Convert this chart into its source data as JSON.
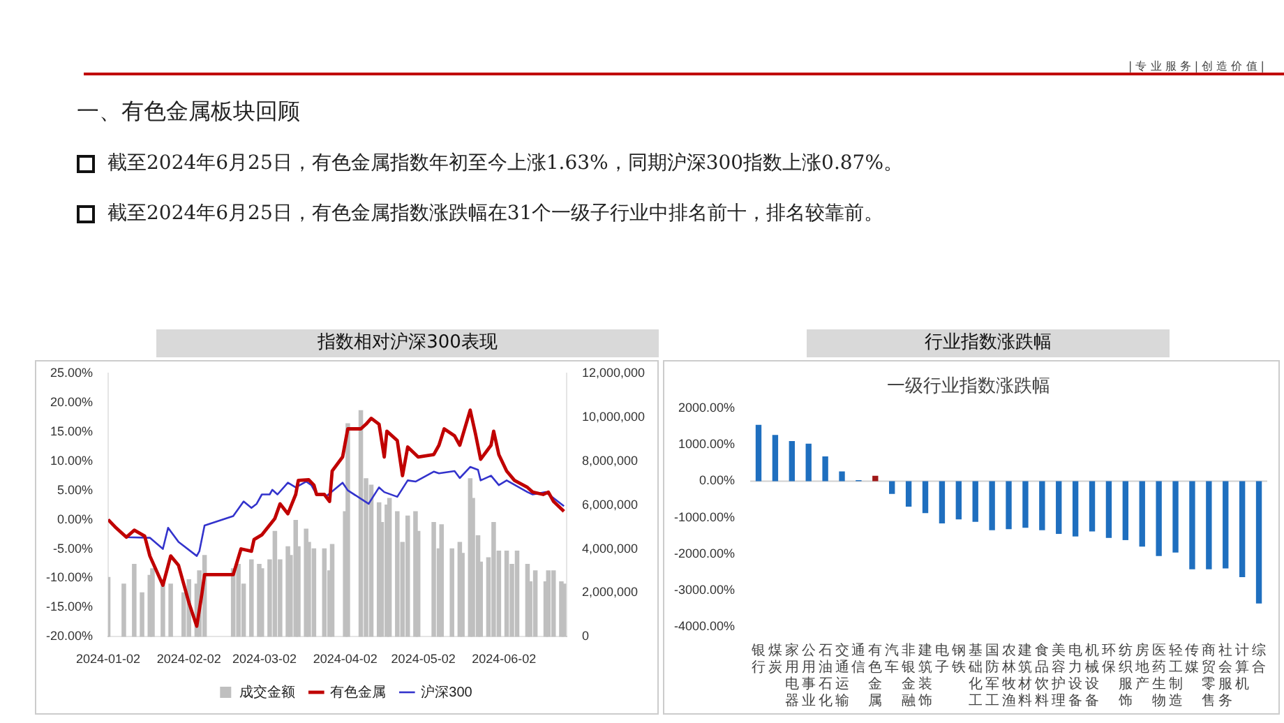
{
  "chart_data": [
    {
      "type": "other",
      "title": "一、有色金属板块回顾",
      "annotations": [
        "| 专 业 服 务 | 创 造 价 值 |",
        "截至2024年6月25日，有色金属指数年初至今上涨1.63%，同期沪深300指数上涨0.87%。",
        "截至2024年6月25日，有色金属指数涨跌幅在31个一级子行业中排名前十，排名较靠前。"
      ]
    },
    {
      "type": "line",
      "title": "指数相对沪深300表现",
      "xlim": [
        "2024-01-02",
        "2024-06-26"
      ],
      "xticks": [
        "2024-01-02",
        "2024-02-02",
        "2024-03-02",
        "2024-04-02",
        "2024-05-02",
        "2024-06-02"
      ],
      "ylim": [
        -20,
        25
      ],
      "yticks": [
        {
          "value": -20,
          "label": "-20.00%"
        },
        {
          "value": -15,
          "label": "-15.00%"
        },
        {
          "value": -10,
          "label": "-10.00%"
        },
        {
          "value": -5,
          "label": "-5.00%"
        },
        {
          "value": 0,
          "label": "0.00%"
        },
        {
          "value": 5,
          "label": "5.00%"
        },
        {
          "value": 10,
          "label": "10.00%"
        },
        {
          "value": 15,
          "label": "15.00%"
        },
        {
          "value": 20,
          "label": "20.00%"
        },
        {
          "value": 25,
          "label": "25.00%"
        }
      ],
      "y2lim": [
        0,
        12000000
      ],
      "y2ticks": [
        {
          "value": 0,
          "label": "0"
        },
        {
          "value": 2000000,
          "label": "2,000,000"
        },
        {
          "value": 4000000,
          "label": "4,000,000"
        },
        {
          "value": 6000000,
          "label": "6,000,000"
        },
        {
          "value": 8000000,
          "label": "8,000,000"
        },
        {
          "value": 10000000,
          "label": "10,000,000"
        },
        {
          "value": 12000000,
          "label": "12,000,000"
        }
      ],
      "grid": false,
      "legend": "bottom",
      "marker": "none",
      "series": [
        {
          "name": "成交金额",
          "type": "bar",
          "axis": "y2",
          "color": "#bfbfbf",
          "x": [
            "2024-01-02",
            "2024-01-08",
            "2024-01-12",
            "2024-01-15",
            "2024-01-18",
            "2024-01-19",
            "2024-01-23",
            "2024-01-26",
            "2024-01-31",
            "2024-02-02",
            "2024-02-05",
            "2024-02-06",
            "2024-02-08",
            "2024-02-19",
            "2024-02-21",
            "2024-02-23",
            "2024-02-26",
            "2024-02-29",
            "2024-03-01",
            "2024-03-04",
            "2024-03-06",
            "2024-03-08",
            "2024-03-11",
            "2024-03-12",
            "2024-03-14",
            "2024-03-15",
            "2024-03-18",
            "2024-03-19",
            "2024-03-21",
            "2024-03-25",
            "2024-03-27",
            "2024-03-28",
            "2024-04-02",
            "2024-04-03",
            "2024-04-08",
            "2024-04-10",
            "2024-04-12",
            "2024-04-15",
            "2024-04-16",
            "2024-04-18",
            "2024-04-19",
            "2024-04-22",
            "2024-04-24",
            "2024-04-26",
            "2024-04-29",
            "2024-04-30",
            "2024-05-06",
            "2024-05-08",
            "2024-05-09",
            "2024-05-13",
            "2024-05-16",
            "2024-05-17",
            "2024-05-20",
            "2024-05-21",
            "2024-05-23",
            "2024-05-24",
            "2024-05-27",
            "2024-05-29",
            "2024-05-31",
            "2024-06-03",
            "2024-06-05",
            "2024-06-07",
            "2024-06-11",
            "2024-06-12",
            "2024-06-14",
            "2024-06-18",
            "2024-06-19",
            "2024-06-21",
            "2024-06-24",
            "2024-06-25"
          ],
          "values": [
            2700000,
            2400000,
            3300000,
            2000000,
            2800000,
            3100000,
            2600000,
            2400000,
            2000000,
            2600000,
            2400000,
            3000000,
            3700000,
            3100000,
            3300000,
            2400000,
            3500000,
            3300000,
            3100000,
            3500000,
            4800000,
            3500000,
            4100000,
            3700000,
            5300000,
            4100000,
            4900000,
            4300000,
            4000000,
            4000000,
            3000000,
            4200000,
            5700000,
            9700000,
            10300000,
            7200000,
            6900000,
            6100000,
            5200000,
            6000000,
            6300000,
            5700000,
            4300000,
            5500000,
            5700000,
            4800000,
            5200000,
            4000000,
            5100000,
            4000000,
            4300000,
            3800000,
            7200000,
            6300000,
            4600000,
            3400000,
            3600000,
            5200000,
            3900000,
            3900000,
            3300000,
            3900000,
            3300000,
            2500000,
            3000000,
            2500000,
            3000000,
            3000000,
            2500000,
            2400000
          ]
        },
        {
          "name": "有色金属",
          "color": "#c00000",
          "x": [
            "2024-01-02",
            "2024-01-05",
            "2024-01-09",
            "2024-01-12",
            "2024-01-16",
            "2024-01-18",
            "2024-01-23",
            "2024-01-26",
            "2024-01-29",
            "2024-02-02",
            "2024-02-05",
            "2024-02-07",
            "2024-02-08",
            "2024-02-19",
            "2024-02-22",
            "2024-02-26",
            "2024-02-27",
            "2024-03-01",
            "2024-03-06",
            "2024-03-08",
            "2024-03-11",
            "2024-03-14",
            "2024-03-15",
            "2024-03-19",
            "2024-03-21",
            "2024-03-22",
            "2024-03-25",
            "2024-03-27",
            "2024-03-28",
            "2024-04-01",
            "2024-04-03",
            "2024-04-08",
            "2024-04-10",
            "2024-04-12",
            "2024-04-15",
            "2024-04-17",
            "2024-04-18",
            "2024-04-22",
            "2024-04-24",
            "2024-04-26",
            "2024-04-30",
            "2024-05-06",
            "2024-05-08",
            "2024-05-10",
            "2024-05-14",
            "2024-05-16",
            "2024-05-20",
            "2024-05-22",
            "2024-05-24",
            "2024-05-28",
            "2024-05-29",
            "2024-05-31",
            "2024-06-03",
            "2024-06-06",
            "2024-06-11",
            "2024-06-13",
            "2024-06-17",
            "2024-06-19",
            "2024-06-21",
            "2024-06-25"
          ],
          "values": [
            0,
            -1.4,
            -3.0,
            -1.8,
            -2.8,
            -6.2,
            -11.2,
            -6.2,
            -7.8,
            -14.2,
            -18.2,
            -12.6,
            -9.4,
            -9.4,
            -5.0,
            -5.4,
            -3.4,
            -2.6,
            0.2,
            2.7,
            1.0,
            4.3,
            6.7,
            6.8,
            5.9,
            4.3,
            4.3,
            3.1,
            8.3,
            10.7,
            15.5,
            15.5,
            16.3,
            17.3,
            16.3,
            10.7,
            15.1,
            13.5,
            7.5,
            12.4,
            10.7,
            11.1,
            12.7,
            15.5,
            14.3,
            12.7,
            18.7,
            14.7,
            10.3,
            12.7,
            15.1,
            11.1,
            8.3,
            6.7,
            5.5,
            4.7,
            4.3,
            4.7,
            3.1,
            1.4
          ]
        },
        {
          "name": "沪深300",
          "color": "#3333cc",
          "x": [
            "2024-01-02",
            "2024-01-09",
            "2024-01-18",
            "2024-01-23",
            "2024-01-25",
            "2024-01-29",
            "2024-02-05",
            "2024-02-06",
            "2024-02-08",
            "2024-02-19",
            "2024-02-23",
            "2024-02-26",
            "2024-02-28",
            "2024-03-01",
            "2024-03-04",
            "2024-03-05",
            "2024-03-07",
            "2024-03-11",
            "2024-03-14",
            "2024-03-18",
            "2024-03-20",
            "2024-03-22",
            "2024-03-26",
            "2024-04-01",
            "2024-04-03",
            "2024-04-11",
            "2024-04-15",
            "2024-04-17",
            "2024-04-22",
            "2024-04-26",
            "2024-04-29",
            "2024-05-06",
            "2024-05-08",
            "2024-05-14",
            "2024-05-16",
            "2024-05-20",
            "2024-05-23",
            "2024-05-24",
            "2024-05-28",
            "2024-05-31",
            "2024-06-03",
            "2024-06-11",
            "2024-06-13",
            "2024-06-18",
            "2024-06-25"
          ],
          "values": [
            0,
            -3.0,
            -3.1,
            -5.0,
            -1.4,
            -3.8,
            -6.2,
            -5.4,
            -1.0,
            0.6,
            3.1,
            2.0,
            2.7,
            4.3,
            4.3,
            5.1,
            4.3,
            6.3,
            5.5,
            6.5,
            5.9,
            4.3,
            4.1,
            6.3,
            5.0,
            2.7,
            5.5,
            4.7,
            3.9,
            6.7,
            6.5,
            8.2,
            7.9,
            8.3,
            7.1,
            9.0,
            8.5,
            6.7,
            7.5,
            5.9,
            6.7,
            4.7,
            4.3,
            4.7,
            2.3
          ]
        }
      ]
    },
    {
      "type": "bar",
      "title": "行业指数涨跌幅",
      "subtitle": "一级行业指数涨跌幅",
      "categories": [
        "银行",
        "煤炭",
        "家用电器",
        "公用事业",
        "石油石化",
        "交通运输",
        "通信",
        "有色金属",
        "汽车",
        "非银金融",
        "建筑装饰",
        "电子",
        "钢铁",
        "基础化工",
        "国防军工",
        "农林牧渔",
        "建筑材料",
        "食品饮料",
        "美容护理",
        "电力设备",
        "机械设备",
        "环保",
        "纺织服饰",
        "房地产",
        "医药生物",
        "轻工制造",
        "传媒",
        "商贸零售",
        "社会服务",
        "计算机",
        "综合"
      ],
      "values": [
        1550,
        1270,
        1100,
        1030,
        680,
        270,
        30,
        150,
        -350,
        -700,
        -880,
        -1160,
        -1050,
        -1120,
        -1350,
        -1320,
        -1280,
        -1350,
        -1450,
        -1520,
        -1380,
        -1560,
        -1620,
        -1800,
        -2060,
        -1960,
        -2420,
        -2420,
        -2400,
        -2640,
        -3360
      ],
      "colors": [
        "#1f6fbf",
        "#1f6fbf",
        "#1f6fbf",
        "#1f6fbf",
        "#1f6fbf",
        "#1f6fbf",
        "#1f6fbf",
        "#a01818",
        "#1f6fbf",
        "#1f6fbf",
        "#1f6fbf",
        "#1f6fbf",
        "#1f6fbf",
        "#1f6fbf",
        "#1f6fbf",
        "#1f6fbf",
        "#1f6fbf",
        "#1f6fbf",
        "#1f6fbf",
        "#1f6fbf",
        "#1f6fbf",
        "#1f6fbf",
        "#1f6fbf",
        "#1f6fbf",
        "#1f6fbf",
        "#1f6fbf",
        "#1f6fbf",
        "#1f6fbf",
        "#1f6fbf",
        "#1f6fbf",
        "#1f6fbf"
      ],
      "ylim": [
        -4000,
        2000
      ],
      "yticks": [
        {
          "value": -4000,
          "label": "-4000.00%"
        },
        {
          "value": -3000,
          "label": "-3000.00%"
        },
        {
          "value": -2000,
          "label": "-2000.00%"
        },
        {
          "value": -1000,
          "label": "-1000.00%"
        },
        {
          "value": 0,
          "label": "0.00%"
        },
        {
          "value": 1000,
          "label": "1000.00%"
        },
        {
          "value": 2000,
          "label": "2000.00%"
        }
      ]
    }
  ]
}
